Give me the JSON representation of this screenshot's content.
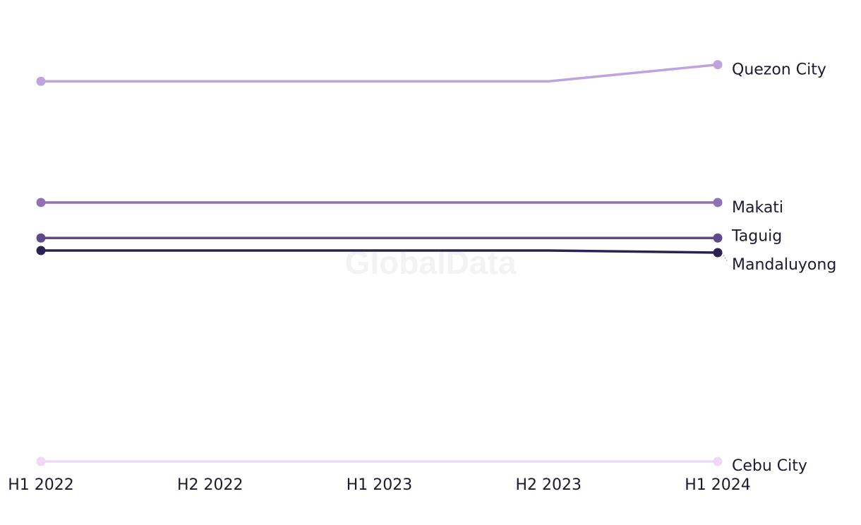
{
  "watermark": "GlobalData",
  "chart_data": {
    "type": "line",
    "categories": [
      "H1 2022",
      "H2 2022",
      "H1 2023",
      "H2 2023",
      "H1 2024"
    ],
    "ylim": [
      0,
      100
    ],
    "grid": false,
    "legend": "direct-labels-right",
    "series": [
      {
        "name": "Quezon City",
        "color": "#bfa3dd",
        "values": [
          91,
          91,
          91,
          91,
          95
        ]
      },
      {
        "name": "Makati",
        "color": "#8f72b3",
        "values": [
          62,
          62,
          62,
          62,
          62
        ]
      },
      {
        "name": "Taguig",
        "color": "#5e4a86",
        "values": [
          53.5,
          53.5,
          53.5,
          53.5,
          53.5
        ]
      },
      {
        "name": "Mandaluyong",
        "color": "#2c2250",
        "values": [
          50.5,
          50.5,
          50.5,
          50.5,
          50
        ]
      },
      {
        "name": "Cebu City",
        "color": "#f0d8f5",
        "values": [
          0,
          0,
          0,
          0,
          0
        ]
      }
    ]
  }
}
